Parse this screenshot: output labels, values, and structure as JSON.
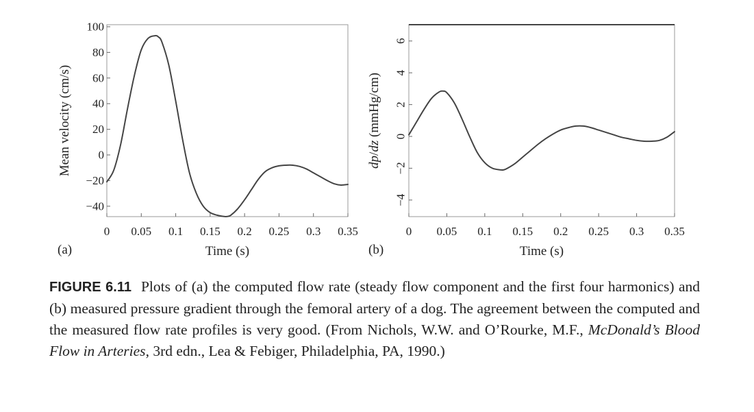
{
  "chart_data": [
    {
      "type": "line",
      "panel_label": "(a)",
      "xlabel": "Time (s)",
      "ylabel": "Mean velocity (cm/s)",
      "xlim": [
        0,
        0.35
      ],
      "ylim": [
        -48,
        100
      ],
      "xticks": [
        0,
        0.05,
        0.1,
        0.15,
        0.2,
        0.25,
        0.3,
        0.35
      ],
      "xtick_labels": [
        "0",
        "0.05",
        "0.1",
        "0.15",
        "0.2",
        "0.25",
        "0.3",
        "0.35"
      ],
      "yticks": [
        -40,
        -20,
        0,
        20,
        40,
        60,
        80,
        100
      ],
      "ytick_labels": [
        "−40",
        "−20",
        "0",
        "20",
        "40",
        "60",
        "80",
        "100"
      ],
      "grid": false,
      "series": [
        {
          "x": [
            0,
            0.01,
            0.02,
            0.03,
            0.04,
            0.05,
            0.06,
            0.07,
            0.075,
            0.08,
            0.09,
            0.1,
            0.11,
            0.12,
            0.13,
            0.14,
            0.15,
            0.16,
            0.17,
            0.175,
            0.18,
            0.19,
            0.2,
            0.21,
            0.22,
            0.23,
            0.24,
            0.25,
            0.26,
            0.27,
            0.28,
            0.29,
            0.3,
            0.31,
            0.32,
            0.33,
            0.34,
            0.35
          ],
          "values": [
            -21,
            -12,
            8,
            36,
            62,
            82,
            91,
            93,
            92,
            88,
            70,
            42,
            12,
            -14,
            -30,
            -40,
            -45,
            -47,
            -48,
            -48,
            -47,
            -42,
            -35,
            -27,
            -19,
            -13,
            -10,
            -8.5,
            -8,
            -8,
            -9,
            -11,
            -14,
            -17,
            -20,
            -22.5,
            -23.5,
            -23
          ]
        }
      ]
    },
    {
      "type": "line",
      "panel_label": "(b)",
      "xlabel": "Time (s)",
      "ylabel_parts": [
        "dp",
        "/",
        "dz",
        " (mmHg/cm)"
      ],
      "xlim": [
        0,
        0.35
      ],
      "ylim": [
        -5,
        7
      ],
      "xticks": [
        0,
        0.05,
        0.1,
        0.15,
        0.2,
        0.25,
        0.3,
        0.35
      ],
      "xtick_labels": [
        "0",
        "0.05",
        "0.1",
        "0.15",
        "0.2",
        "0.25",
        "0.3",
        "0.35"
      ],
      "yticks": [
        -4,
        -2,
        0,
        2,
        4,
        6
      ],
      "ytick_labels": [
        "−4",
        "−2",
        "0",
        "2",
        "4",
        "6"
      ],
      "grid": false,
      "series": [
        {
          "x": [
            0,
            0.01,
            0.02,
            0.03,
            0.04,
            0.045,
            0.05,
            0.06,
            0.07,
            0.08,
            0.09,
            0.1,
            0.11,
            0.12,
            0.125,
            0.13,
            0.14,
            0.15,
            0.16,
            0.17,
            0.18,
            0.19,
            0.2,
            0.21,
            0.22,
            0.23,
            0.24,
            0.25,
            0.26,
            0.27,
            0.28,
            0.29,
            0.3,
            0.31,
            0.32,
            0.33,
            0.34,
            0.35
          ],
          "values": [
            0.1,
            0.9,
            1.7,
            2.4,
            2.8,
            2.85,
            2.75,
            2.1,
            1.1,
            0,
            -1.0,
            -1.65,
            -2.0,
            -2.1,
            -2.1,
            -2.0,
            -1.7,
            -1.3,
            -0.9,
            -0.5,
            -0.15,
            0.15,
            0.4,
            0.55,
            0.65,
            0.65,
            0.55,
            0.4,
            0.25,
            0.1,
            -0.05,
            -0.15,
            -0.25,
            -0.3,
            -0.3,
            -0.25,
            -0.05,
            0.3
          ]
        }
      ]
    }
  ],
  "caption": {
    "figure_number": "FIGURE 6.11",
    "text_before_italic": "Plots of (a) the computed flow rate (steady flow component and the first four harmonics) and (b) measured pressure gradient through the femoral artery of a dog. The agreement between the computed and the measured flow rate profiles is very good. (From Nichols, W.W. and O’Rourke, M.F., ",
    "italic_title": "McDonald’s Blood Flow in Arteries",
    "text_after_italic": ", 3rd edn., Lea & Febiger, Philadelphia, PA, 1990.)"
  }
}
